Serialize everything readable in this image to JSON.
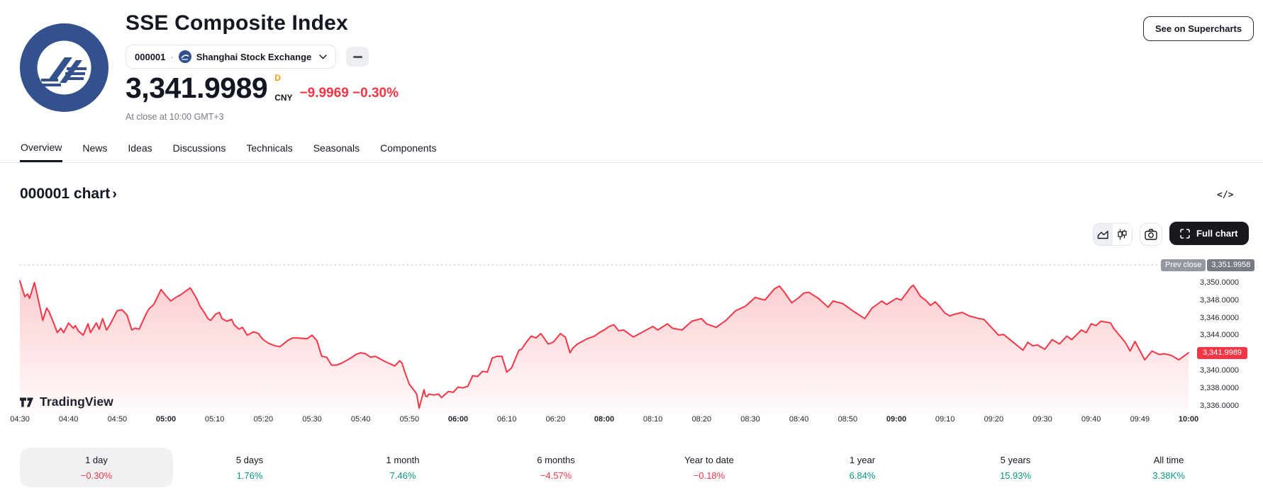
{
  "header": {
    "title": "SSE Composite Index",
    "symbol": "000001",
    "separator": "·",
    "exchange": "Shanghai Stock Exchange",
    "price": "3,341.9989",
    "price_flag": "D",
    "currency": "CNY",
    "change": "−9.9969 −0.30%",
    "close_note": "At close at 10:00 GMT+3",
    "supercharts_button": "See on Supercharts"
  },
  "tabs": [
    "Overview",
    "News",
    "Ideas",
    "Discussions",
    "Technicals",
    "Seasonals",
    "Components"
  ],
  "active_tab": 0,
  "section": {
    "heading": "000001 chart",
    "chevron": "›",
    "embed_icon": "</>"
  },
  "toolbar": {
    "full_chart_label": "Full chart"
  },
  "watermark": "TradingView",
  "colors": {
    "line_red": "#F23645",
    "up_green": "#089981",
    "flag_orange": "#F59913",
    "badge_gray": "#787B86"
  },
  "chart_data": {
    "type": "area",
    "title": "000001 chart",
    "line_color": "#F23645",
    "grid": false,
    "x_ticks": [
      "04:30",
      "04:40",
      "04:50",
      "05:00",
      "05:10",
      "05:20",
      "05:30",
      "05:40",
      "05:50",
      "06:00",
      "06:10",
      "06:20",
      "08:00",
      "08:10",
      "08:20",
      "08:30",
      "08:40",
      "08:50",
      "09:00",
      "09:10",
      "09:20",
      "09:30",
      "09:40",
      "09:49",
      "10:00"
    ],
    "y_ticks": [
      {
        "label": "3,350.0000",
        "price": 3350
      },
      {
        "label": "3,348.0000",
        "price": 3348
      },
      {
        "label": "3,346.0000",
        "price": 3346
      },
      {
        "label": "3,344.0000",
        "price": 3344
      },
      {
        "label": "3,340.0000",
        "price": 3340
      },
      {
        "label": "3,338.0000",
        "price": 3338
      },
      {
        "label": "3,336.0000",
        "price": 3336
      }
    ],
    "prev_close": {
      "label": "Prev close",
      "value": "3,351.9958",
      "price": 3351.9958
    },
    "last": {
      "label": "3,341.9989",
      "price": 3341.9989
    },
    "x_unit": "minutes from 04:30, lunch break 06:30-08:00 collapsed",
    "points": [
      [
        0,
        3350.2
      ],
      [
        1,
        3348.4
      ],
      [
        1.6,
        3348.7
      ],
      [
        2,
        3348.2
      ],
      [
        3,
        3350
      ],
      [
        4,
        3347.5
      ],
      [
        4.7,
        3345.7
      ],
      [
        5.5,
        3347.1
      ],
      [
        6,
        3346.7
      ],
      [
        7,
        3345.3
      ],
      [
        7.7,
        3344.3
      ],
      [
        8.4,
        3344.8
      ],
      [
        9,
        3344.3
      ],
      [
        10,
        3345.4
      ],
      [
        11,
        3344.8
      ],
      [
        11.4,
        3345.1
      ],
      [
        12,
        3344.5
      ],
      [
        13,
        3344
      ],
      [
        14,
        3345.3
      ],
      [
        14.5,
        3344.3
      ],
      [
        15.7,
        3345.4
      ],
      [
        16.3,
        3344.7
      ],
      [
        17,
        3345.9
      ],
      [
        17.8,
        3344.6
      ],
      [
        18.5,
        3345.2
      ],
      [
        20,
        3346.8
      ],
      [
        21,
        3346.9
      ],
      [
        22,
        3346.3
      ],
      [
        23,
        3344.6
      ],
      [
        23.6,
        3344.8
      ],
      [
        24.5,
        3344.7
      ],
      [
        26,
        3346.5
      ],
      [
        26.5,
        3347
      ],
      [
        27.5,
        3347.5
      ],
      [
        29,
        3349.2
      ],
      [
        30,
        3348.5
      ],
      [
        31,
        3347.9
      ],
      [
        32,
        3348.3
      ],
      [
        33,
        3348.6
      ],
      [
        34,
        3349
      ],
      [
        35,
        3349.4
      ],
      [
        36.4,
        3348.1
      ],
      [
        37,
        3347.3
      ],
      [
        38,
        3346.5
      ],
      [
        38.6,
        3345.9
      ],
      [
        39.2,
        3345.7
      ],
      [
        40.2,
        3346.4
      ],
      [
        41,
        3346.6
      ],
      [
        41.5,
        3345.9
      ],
      [
        42.5,
        3345.6
      ],
      [
        43.5,
        3345.8
      ],
      [
        44,
        3345.2
      ],
      [
        45,
        3344.7
      ],
      [
        45.7,
        3344.9
      ],
      [
        46.7,
        3344
      ],
      [
        48,
        3344.4
      ],
      [
        49,
        3344.2
      ],
      [
        49.5,
        3343.8
      ],
      [
        50,
        3343.5
      ],
      [
        51,
        3343.1
      ],
      [
        52.4,
        3342.8
      ],
      [
        53.4,
        3342.7
      ],
      [
        55,
        3343.4
      ],
      [
        56,
        3343.7
      ],
      [
        57,
        3343.7
      ],
      [
        59,
        3343.6
      ],
      [
        60,
        3344
      ],
      [
        61,
        3343.4
      ],
      [
        62,
        3341.6
      ],
      [
        63,
        3341.5
      ],
      [
        64,
        3340.6
      ],
      [
        65,
        3340.6
      ],
      [
        66,
        3340.8
      ],
      [
        67,
        3341.1
      ],
      [
        68.5,
        3341.6
      ],
      [
        69,
        3341.8
      ],
      [
        70,
        3342
      ],
      [
        71,
        3341.9
      ],
      [
        72,
        3341.5
      ],
      [
        73,
        3341.6
      ],
      [
        74,
        3341.3
      ],
      [
        75,
        3341
      ],
      [
        77,
        3340.5
      ],
      [
        78,
        3341.1
      ],
      [
        78.5,
        3340.8
      ],
      [
        79,
        3339.9
      ],
      [
        80,
        3338.4
      ],
      [
        81,
        3337.7
      ],
      [
        81.5,
        3337.3
      ],
      [
        82,
        3335.7
      ],
      [
        83,
        3337.8
      ],
      [
        83.3,
        3337.1
      ],
      [
        83.6,
        3337
      ],
      [
        84,
        3337.3
      ],
      [
        85,
        3337.2
      ],
      [
        86,
        3337.3
      ],
      [
        86.6,
        3336.9
      ],
      [
        87,
        3337.1
      ],
      [
        88,
        3337.6
      ],
      [
        89,
        3337.5
      ],
      [
        90,
        3338.1
      ],
      [
        91,
        3338
      ],
      [
        92,
        3338.2
      ],
      [
        93,
        3339.4
      ],
      [
        94,
        3339.3
      ],
      [
        95,
        3339.9
      ],
      [
        96,
        3339.8
      ],
      [
        97,
        3341.4
      ],
      [
        98,
        3341.6
      ],
      [
        99,
        3341.6
      ],
      [
        100,
        3339.8
      ],
      [
        101,
        3340.3
      ],
      [
        102.5,
        3342.3
      ],
      [
        103,
        3342.4
      ],
      [
        104,
        3343.2
      ],
      [
        105,
        3343.9
      ],
      [
        106,
        3343.7
      ],
      [
        107,
        3344.2
      ],
      [
        108.5,
        3343
      ],
      [
        109.5,
        3343.2
      ],
      [
        110,
        3343.5
      ],
      [
        111,
        3344.2
      ],
      [
        112,
        3343.8
      ],
      [
        113,
        3342
      ],
      [
        113.5,
        3342.5
      ],
      [
        114.5,
        3343
      ],
      [
        115.5,
        3343.3
      ],
      [
        116.5,
        3343.6
      ],
      [
        118,
        3343.9
      ],
      [
        119,
        3344.3
      ],
      [
        120,
        3344.6
      ],
      [
        121,
        3345
      ],
      [
        122,
        3345.2
      ],
      [
        123,
        3344.5
      ],
      [
        124,
        3344.6
      ],
      [
        125,
        3344.2
      ],
      [
        126,
        3343.8
      ],
      [
        128,
        3344.4
      ],
      [
        130,
        3345
      ],
      [
        131,
        3344.6
      ],
      [
        133,
        3345.3
      ],
      [
        134,
        3344.8
      ],
      [
        136,
        3344.6
      ],
      [
        138,
        3345.6
      ],
      [
        140,
        3345.9
      ],
      [
        141,
        3345.3
      ],
      [
        143,
        3344.9
      ],
      [
        145,
        3345.7
      ],
      [
        147,
        3346.8
      ],
      [
        149,
        3347.3
      ],
      [
        151,
        3348.3
      ],
      [
        153,
        3348
      ],
      [
        155,
        3349.3
      ],
      [
        156,
        3349.6
      ],
      [
        157,
        3348.9
      ],
      [
        158.5,
        3347.7
      ],
      [
        160,
        3348.3
      ],
      [
        161,
        3348.8
      ],
      [
        162,
        3348.9
      ],
      [
        164,
        3348.2
      ],
      [
        166,
        3347.2
      ],
      [
        167,
        3347.9
      ],
      [
        169,
        3347.6
      ],
      [
        171,
        3346.8
      ],
      [
        173.5,
        3345.9
      ],
      [
        175,
        3347.1
      ],
      [
        177,
        3347.9
      ],
      [
        178,
        3347.5
      ],
      [
        180,
        3348.2
      ],
      [
        181,
        3348
      ],
      [
        183,
        3349.5
      ],
      [
        183.5,
        3349.7
      ],
      [
        185,
        3348.4
      ],
      [
        186,
        3348
      ],
      [
        187,
        3347.4
      ],
      [
        188,
        3347.8
      ],
      [
        189,
        3347.2
      ],
      [
        190,
        3346.5
      ],
      [
        191,
        3346.2
      ],
      [
        192,
        3346.4
      ],
      [
        193.5,
        3346.6
      ],
      [
        195,
        3346.2
      ],
      [
        197,
        3345.9
      ],
      [
        198,
        3345.8
      ],
      [
        201,
        3344
      ],
      [
        202,
        3344.1
      ],
      [
        204,
        3343.2
      ],
      [
        206,
        3342.3
      ],
      [
        207,
        3343.2
      ],
      [
        208,
        3342.8
      ],
      [
        209,
        3342.9
      ],
      [
        210.5,
        3342.4
      ],
      [
        212,
        3343.5
      ],
      [
        213.5,
        3343
      ],
      [
        215,
        3343.9
      ],
      [
        216,
        3343.5
      ],
      [
        218,
        3344.6
      ],
      [
        219,
        3344.3
      ],
      [
        220,
        3345.3
      ],
      [
        221,
        3345.1
      ],
      [
        222,
        3345.6
      ],
      [
        224,
        3345.4
      ],
      [
        224.6,
        3344.8
      ],
      [
        227,
        3343.2
      ],
      [
        228,
        3342.2
      ],
      [
        229,
        3343.3
      ],
      [
        231,
        3341.2
      ],
      [
        232.5,
        3342.2
      ],
      [
        234,
        3341.8
      ],
      [
        235,
        3341.9
      ],
      [
        236.5,
        3341.7
      ],
      [
        238,
        3341.2
      ],
      [
        239,
        3341.6
      ],
      [
        240,
        3342
      ]
    ]
  },
  "periods": [
    {
      "label": "1 day",
      "value": "−0.30%",
      "dir": "down",
      "selected": true
    },
    {
      "label": "5 days",
      "value": "1.76%",
      "dir": "up",
      "selected": false
    },
    {
      "label": "1 month",
      "value": "7.46%",
      "dir": "up",
      "selected": false
    },
    {
      "label": "6 months",
      "value": "−4.57%",
      "dir": "down",
      "selected": false
    },
    {
      "label": "Year to date",
      "value": "−0.18%",
      "dir": "down",
      "selected": false
    },
    {
      "label": "1 year",
      "value": "6.84%",
      "dir": "up",
      "selected": false
    },
    {
      "label": "5 years",
      "value": "15.93%",
      "dir": "up",
      "selected": false
    },
    {
      "label": "All time",
      "value": "3.38K%",
      "dir": "up",
      "selected": false
    }
  ]
}
